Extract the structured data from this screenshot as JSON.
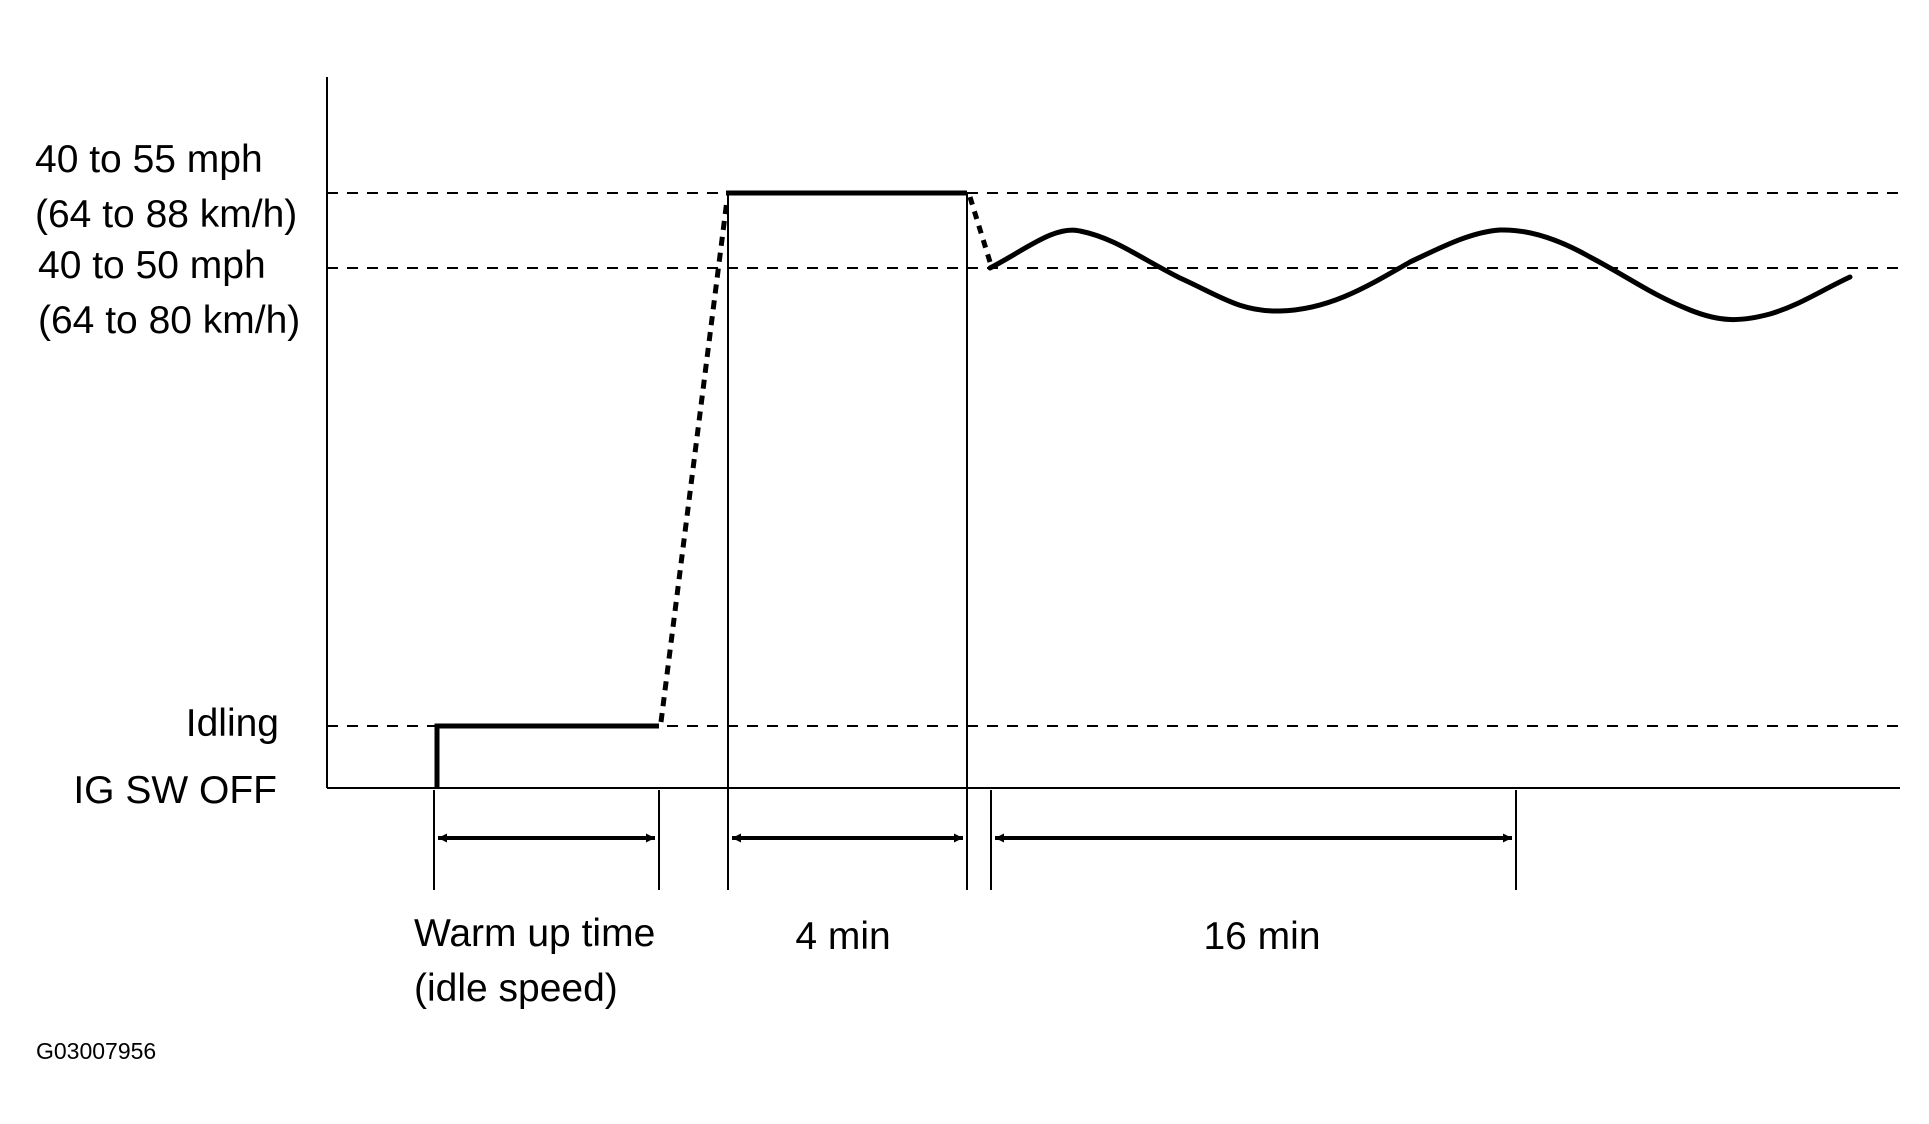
{
  "diagram": {
    "y_levels": {
      "upper_line1": "40 to 55 mph",
      "upper_line2": "(64 to 88 km/h)",
      "lower_line1": "40 to 50 mph",
      "lower_line2": "(64 to 80 km/h)",
      "idling": "Idling",
      "ig_off": "IG SW OFF"
    },
    "intervals": {
      "warmup_line1": "Warm up time",
      "warmup_line2": "(idle speed)",
      "hold": "4 min",
      "cruise": "16 min"
    },
    "figure_code": "G03007956"
  },
  "colors": {
    "ink": "#000000",
    "background": "#ffffff"
  }
}
